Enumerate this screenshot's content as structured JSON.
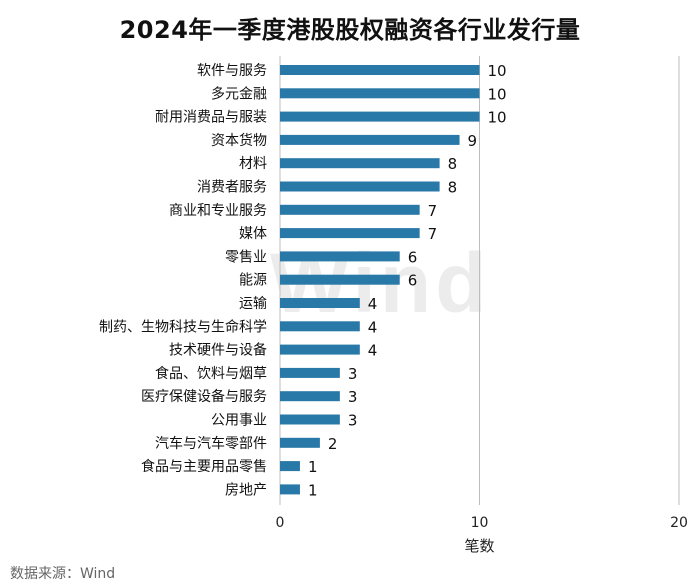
{
  "chart_data": {
    "type": "bar",
    "orientation": "horizontal",
    "title": "2024年一季度港股股权融资各行业发行量",
    "xlabel": "笔数",
    "ylabel": "",
    "xlim": [
      0,
      20
    ],
    "x_ticks": [
      0,
      10,
      20
    ],
    "grid": "vertical lines at major ticks",
    "legend": "none",
    "bar_color": "#2878a8",
    "categories": [
      "软件与服务",
      "多元金融",
      "耐用消费品与服装",
      "资本货物",
      "材料",
      "消费者服务",
      "商业和专业服务",
      "媒体",
      "零售业",
      "能源",
      "运输",
      "制药、生物科技与生命科学",
      "技术硬件与设备",
      "食品、饮料与烟草",
      "医疗保健设备与服务",
      "公用事业",
      "汽车与汽车零部件",
      "食品与主要用品零售",
      "房地产"
    ],
    "values": [
      10,
      10,
      10,
      9,
      8,
      8,
      7,
      7,
      6,
      6,
      4,
      4,
      4,
      3,
      3,
      3,
      2,
      1,
      1
    ]
  },
  "source": "数据来源：Wind",
  "watermark": "Wind"
}
